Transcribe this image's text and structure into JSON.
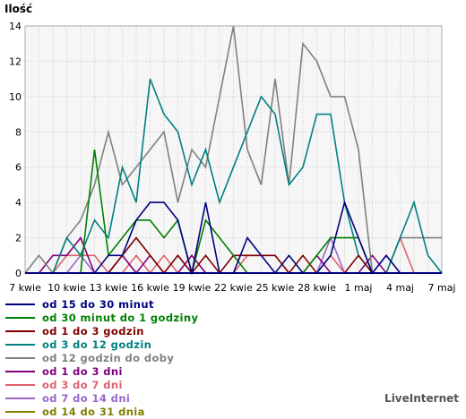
{
  "chart_data": {
    "type": "line",
    "ylabel": "Ilość",
    "ylim": [
      0,
      14
    ],
    "yticks": [
      0,
      2,
      4,
      6,
      8,
      10,
      12,
      14
    ],
    "grid": true,
    "x_ticks": [
      {
        "i": 0,
        "label": "7 kwie"
      },
      {
        "i": 3,
        "label": "10 kwie"
      },
      {
        "i": 6,
        "label": "13 kwie"
      },
      {
        "i": 9,
        "label": "16 kwie"
      },
      {
        "i": 12,
        "label": "19 kwie"
      },
      {
        "i": 15,
        "label": "22 kwie"
      },
      {
        "i": 18,
        "label": "25 kwie"
      },
      {
        "i": 21,
        "label": "28 kwie"
      },
      {
        "i": 24,
        "label": "1 maj"
      },
      {
        "i": 27,
        "label": "4 maj"
      },
      {
        "i": 30,
        "label": "7 maj"
      }
    ],
    "series": [
      {
        "name": "od 15 do 30 minut",
        "color": "#000080",
        "values": [
          0,
          0,
          0,
          0,
          0,
          0,
          1,
          1,
          3,
          4,
          4,
          3,
          0,
          4,
          0,
          0,
          2,
          1,
          0,
          1,
          0,
          0,
          1,
          4,
          2,
          0,
          1,
          0,
          0,
          0,
          0
        ]
      },
      {
        "name": "od 30 minut do 1 godziny",
        "color": "#008000",
        "values": [
          0,
          0,
          0,
          0,
          0,
          7,
          1,
          2,
          3,
          3,
          2,
          3,
          0,
          3,
          2,
          1,
          0,
          0,
          0,
          0,
          0,
          1,
          2,
          2,
          2,
          0,
          0,
          0,
          0,
          0,
          0
        ]
      },
      {
        "name": "od 1 do 3 godzin",
        "color": "#800000",
        "values": [
          0,
          0,
          0,
          0,
          0,
          0,
          0,
          1,
          2,
          1,
          0,
          1,
          0,
          1,
          0,
          1,
          1,
          1,
          1,
          0,
          1,
          0,
          0,
          0,
          1,
          0,
          0,
          0,
          0,
          0,
          0
        ]
      },
      {
        "name": "od 3 do 12 godzin",
        "color": "#008080",
        "values": [
          0,
          0,
          0,
          2,
          1,
          3,
          2,
          6,
          4,
          11,
          9,
          8,
          5,
          7,
          4,
          6,
          8,
          10,
          9,
          5,
          6,
          9,
          9,
          4,
          1,
          0,
          0,
          2,
          4,
          1,
          0
        ]
      },
      {
        "name": "od 12 godzin do doby",
        "color": "#808080",
        "values": [
          0,
          1,
          0,
          2,
          3,
          5,
          8,
          5,
          6,
          7,
          8,
          4,
          7,
          6,
          10,
          14,
          7,
          5,
          11,
          5,
          13,
          12,
          10,
          10,
          7,
          0,
          0,
          2,
          2,
          2,
          2
        ]
      },
      {
        "name": "od 1 do 3 dni",
        "color": "#800080",
        "values": [
          0,
          0,
          1,
          1,
          2,
          0,
          0,
          1,
          0,
          1,
          0,
          0,
          1,
          0,
          0,
          0,
          0,
          0,
          0,
          0,
          0,
          1,
          0,
          0,
          0,
          1,
          0,
          0,
          0,
          0,
          0
        ]
      },
      {
        "name": "od 3 do 7 dni",
        "color": "#e06070",
        "values": [
          0,
          0,
          0,
          1,
          1,
          1,
          0,
          0,
          1,
          0,
          1,
          0,
          1,
          0,
          0,
          0,
          1,
          1,
          1,
          0,
          0,
          0,
          1,
          0,
          0,
          0,
          0,
          2,
          0,
          0,
          0
        ]
      },
      {
        "name": "od 7 do 14 dni",
        "color": "#9966cc",
        "values": [
          0,
          0,
          0,
          0,
          1,
          0,
          0,
          1,
          0,
          0,
          0,
          1,
          0,
          0,
          0,
          0,
          0,
          0,
          0,
          0,
          0,
          0,
          2,
          0,
          0,
          0,
          1,
          0,
          0,
          0,
          0
        ]
      },
      {
        "name": "od 14 do 31 dnia",
        "color": "#808000",
        "values": [
          0,
          0,
          0,
          0,
          0,
          0,
          0,
          0,
          0,
          0,
          0,
          0,
          0,
          0,
          0,
          0,
          0,
          0,
          0,
          0,
          0,
          0,
          0,
          0,
          0,
          0,
          0,
          0,
          0,
          0,
          0
        ]
      }
    ]
  },
  "watermark": "LiveInternet"
}
